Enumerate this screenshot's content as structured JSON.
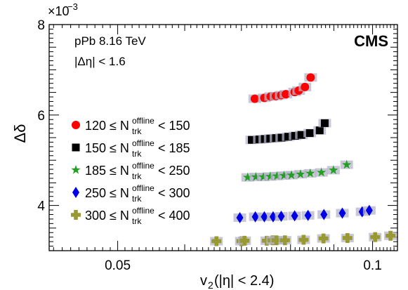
{
  "chart_data": {
    "type": "scatter",
    "title": "",
    "xlabel_main": "v",
    "xlabel_sub": "2",
    "xlabel_rest": " (|η| < 2.4)",
    "ylabel": "Δδ",
    "ylabel_exponent_prefix": "×10",
    "ylabel_exponent_power": "−3",
    "xlim": [
      0.0415,
      0.107
    ],
    "ylim": [
      3.0,
      8.0
    ],
    "x_ticks": [
      {
        "value": 0.05,
        "label": "0.05"
      },
      {
        "value": 0.1,
        "label": "0.1"
      }
    ],
    "y_ticks": [
      {
        "value": 4,
        "label": "4"
      },
      {
        "value": 6,
        "label": "6"
      },
      {
        "value": 8,
        "label": "8"
      }
    ],
    "grid": false,
    "legend_position": "left",
    "annotations": {
      "system": "pPb 8.16 TeV",
      "eta_gap": "|Δη| < 1.6",
      "experiment": "CMS"
    },
    "series": [
      {
        "name": "120 ≤ N_trk^offline < 150",
        "legend_prefix": "120 ≤ N",
        "legend_sub": "trk",
        "legend_sup": "offline",
        "legend_suffix": " < 150",
        "color": "#ff0000",
        "marker": "circle",
        "points": [
          [
            0.0726,
            6.36
          ],
          [
            0.0745,
            6.38
          ],
          [
            0.0758,
            6.41
          ],
          [
            0.0769,
            6.42
          ],
          [
            0.078,
            6.44
          ],
          [
            0.079,
            6.46
          ],
          [
            0.0809,
            6.51
          ],
          [
            0.0818,
            6.54
          ],
          [
            0.0832,
            6.62
          ],
          [
            0.0845,
            6.83
          ]
        ]
      },
      {
        "name": "150 ≤ N_trk^offline < 185",
        "legend_prefix": "150 ≤ N",
        "legend_sub": "trk",
        "legend_sup": "offline",
        "legend_suffix": " < 185",
        "color": "#000000",
        "marker": "square",
        "points": [
          [
            0.072,
            5.45
          ],
          [
            0.0735,
            5.46
          ],
          [
            0.0746,
            5.47
          ],
          [
            0.0757,
            5.48
          ],
          [
            0.0769,
            5.49
          ],
          [
            0.0781,
            5.5
          ],
          [
            0.0795,
            5.52
          ],
          [
            0.081,
            5.54
          ],
          [
            0.0824,
            5.56
          ],
          [
            0.0843,
            5.6
          ],
          [
            0.0866,
            5.66
          ],
          [
            0.0878,
            5.82
          ]
        ]
      },
      {
        "name": "185 ≤ N_trk^offline < 250",
        "legend_prefix": "185 ≤ N",
        "legend_sub": "trk",
        "legend_sup": "offline",
        "legend_suffix": " < 250",
        "color": "#249e24",
        "marker": "star",
        "points": [
          [
            0.0712,
            4.62
          ],
          [
            0.0728,
            4.63
          ],
          [
            0.0743,
            4.63
          ],
          [
            0.0757,
            4.64
          ],
          [
            0.0771,
            4.65
          ],
          [
            0.0786,
            4.66
          ],
          [
            0.0802,
            4.67
          ],
          [
            0.0822,
            4.69
          ],
          [
            0.0844,
            4.71
          ],
          [
            0.087,
            4.73
          ],
          [
            0.0899,
            4.78
          ],
          [
            0.0932,
            4.9
          ]
        ]
      },
      {
        "name": "250 ≤ N_trk^offline < 300",
        "legend_prefix": "250 ≤ N",
        "legend_sub": "trk",
        "legend_sup": "offline",
        "legend_suffix": " < 300",
        "color": "#0000e6",
        "marker": "diamond",
        "points": [
          [
            0.0697,
            3.73
          ],
          [
            0.0727,
            3.75
          ],
          [
            0.0745,
            3.75
          ],
          [
            0.0763,
            3.75
          ],
          [
            0.078,
            3.76
          ],
          [
            0.0809,
            3.77
          ],
          [
            0.0839,
            3.78
          ],
          [
            0.0876,
            3.8
          ],
          [
            0.0921,
            3.83
          ],
          [
            0.0972,
            3.86
          ],
          [
            0.0991,
            3.89
          ]
        ]
      },
      {
        "name": "300 ≤ N_trk^offline < 400",
        "legend_prefix": "300 ≤ N",
        "legend_sub": "trk",
        "legend_sup": "offline",
        "legend_suffix": " < 400",
        "color": "#999933",
        "marker": "cross",
        "points": [
          [
            0.0654,
            3.21
          ],
          [
            0.07,
            3.21
          ],
          [
            0.0706,
            3.22
          ],
          [
            0.075,
            3.22
          ],
          [
            0.0762,
            3.23
          ],
          [
            0.077,
            3.23
          ],
          [
            0.0788,
            3.23
          ],
          [
            0.0829,
            3.24
          ],
          [
            0.0875,
            3.27
          ],
          [
            0.0934,
            3.28
          ],
          [
            0.1007,
            3.3
          ],
          [
            0.105,
            3.33
          ]
        ]
      }
    ]
  }
}
